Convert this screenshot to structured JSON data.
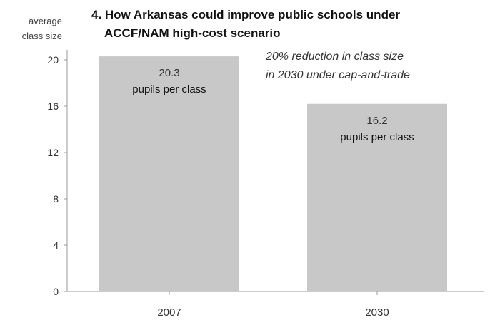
{
  "chart_data": {
    "type": "bar",
    "title": "4. How Arkansas could improve public schools under ACCF/NAM high-cost scenario",
    "title_lines": [
      "4. How Arkansas could improve public schools under",
      "ACCF/NAM high-cost scenario"
    ],
    "ylabel_lines": [
      "average",
      "class size"
    ],
    "xlabel": "",
    "categories": [
      "2007",
      "2030"
    ],
    "values": [
      20.3,
      16.2
    ],
    "value_labels": [
      "20.3",
      "16.2"
    ],
    "unit_label": "pupils per class",
    "yticks": [
      0,
      4,
      8,
      12,
      16,
      20
    ],
    "ylim": [
      0,
      21.5
    ],
    "grid": false,
    "bar_color": "#c8c8c8",
    "annotation_lines": [
      "20% reduction in class size",
      "in 2030 under cap-and-trade"
    ]
  }
}
